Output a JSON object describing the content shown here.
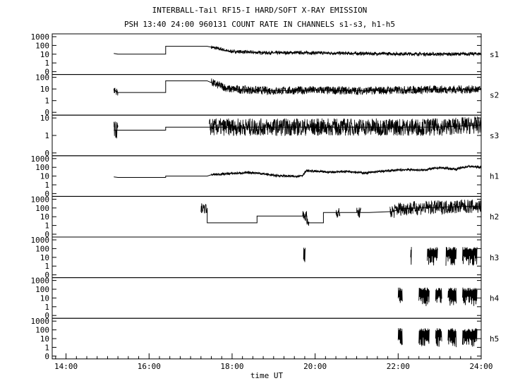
{
  "chart_data": {
    "type": "line",
    "title": "INTERBALL-Tail RF15-I HARD/SOFT X-RAY EMISSION",
    "subtitle": "PSH 13:40 24:00 960131  COUNT RATE IN CHANNELS s1-s3, h1-h5",
    "xlabel": "time UT",
    "x_ticks": [
      "14:00",
      "16:00",
      "18:00",
      "20:00",
      "22:00",
      "24:00"
    ],
    "xlim": [
      13.667,
      24.0
    ],
    "y_scale": "log",
    "grid": false,
    "panels": [
      {
        "name": "s1",
        "y_ticks": [
          "1000",
          "100",
          "10",
          "1",
          "0"
        ],
        "points": [
          [
            15.15,
            12
          ],
          [
            15.25,
            10
          ],
          [
            16.4,
            10
          ],
          [
            16.4,
            80
          ],
          [
            17.4,
            80
          ],
          [
            17.6,
            50
          ],
          [
            17.9,
            22
          ],
          [
            18.5,
            16
          ],
          [
            19.0,
            14
          ],
          [
            19.5,
            15
          ],
          [
            20.0,
            14
          ],
          [
            20.5,
            13
          ],
          [
            21.0,
            12
          ],
          [
            22.0,
            11
          ],
          [
            23.0,
            10
          ],
          [
            24.0,
            11
          ]
        ],
        "noise": [
          [
            17.5,
            24.0,
            0.2
          ]
        ]
      },
      {
        "name": "s2",
        "y_ticks": [
          "100",
          "10",
          "1",
          "0"
        ],
        "points": [
          [
            15.15,
            8
          ],
          [
            15.25,
            5
          ],
          [
            16.4,
            5
          ],
          [
            16.4,
            50
          ],
          [
            17.4,
            50
          ],
          [
            17.6,
            25
          ],
          [
            17.9,
            10
          ],
          [
            18.5,
            8
          ],
          [
            19.0,
            7
          ],
          [
            20.0,
            8
          ],
          [
            21.0,
            7
          ],
          [
            22.0,
            8
          ],
          [
            23.0,
            9
          ],
          [
            24.0,
            9
          ]
        ],
        "noise": [
          [
            15.15,
            15.25,
            0.3
          ],
          [
            17.5,
            24.0,
            0.35
          ]
        ]
      },
      {
        "name": "s3",
        "y_ticks": [
          "10",
          "1",
          "0"
        ],
        "points": [
          [
            15.15,
            2
          ],
          [
            15.25,
            2
          ],
          [
            16.4,
            2
          ],
          [
            16.4,
            3
          ],
          [
            17.4,
            3
          ],
          [
            17.5,
            3
          ],
          [
            18.0,
            3
          ],
          [
            19.0,
            3
          ],
          [
            20.0,
            3
          ],
          [
            21.0,
            3
          ],
          [
            22.0,
            3
          ],
          [
            23.0,
            3
          ],
          [
            24.0,
            4
          ]
        ],
        "noise": [
          [
            15.15,
            15.25,
            0.5
          ],
          [
            17.45,
            24.0,
            0.5
          ]
        ]
      },
      {
        "name": "h1",
        "y_ticks": [
          "1000",
          "100",
          "10",
          "1",
          "0"
        ],
        "points": [
          [
            15.15,
            8
          ],
          [
            15.25,
            7
          ],
          [
            16.4,
            7
          ],
          [
            16.4,
            10
          ],
          [
            17.4,
            10
          ],
          [
            17.5,
            14
          ],
          [
            18.0,
            20
          ],
          [
            18.5,
            25
          ],
          [
            19.0,
            12
          ],
          [
            19.5,
            9
          ],
          [
            19.7,
            12
          ],
          [
            19.8,
            40
          ],
          [
            20.3,
            28
          ],
          [
            20.8,
            35
          ],
          [
            21.2,
            22
          ],
          [
            21.7,
            38
          ],
          [
            22.2,
            55
          ],
          [
            22.6,
            48
          ],
          [
            23.0,
            90
          ],
          [
            23.4,
            60
          ],
          [
            23.7,
            130
          ],
          [
            24.0,
            100
          ]
        ],
        "noise": [
          [
            17.5,
            24.0,
            0.15
          ]
        ]
      },
      {
        "name": "h2",
        "y_ticks": [
          "1000",
          "100",
          "10",
          "1",
          "0"
        ],
        "points": [
          [
            17.4,
            100
          ],
          [
            17.4,
            2
          ],
          [
            18.6,
            2
          ],
          [
            18.6,
            12
          ],
          [
            19.8,
            12
          ],
          [
            19.8,
            2
          ],
          [
            20.2,
            2
          ],
          [
            20.2,
            30
          ],
          [
            21.3,
            30
          ],
          [
            21.9,
            40
          ],
          [
            22.0,
            80
          ],
          [
            23.0,
            120
          ],
          [
            23.5,
            150
          ],
          [
            24.0,
            150
          ]
        ],
        "noise": [
          [
            17.25,
            17.4,
            0.6
          ],
          [
            19.7,
            19.85,
            0.6
          ],
          [
            20.5,
            20.6,
            0.6
          ],
          [
            21.0,
            21.1,
            0.6
          ],
          [
            21.8,
            24.0,
            0.8
          ]
        ]
      },
      {
        "name": "h3",
        "y_ticks": [
          "1000",
          "100",
          "10",
          "1",
          "0"
        ],
        "points": [],
        "bursts": [
          [
            19.72,
            19.76
          ],
          [
            22.3,
            22.32
          ],
          [
            22.7,
            22.95
          ],
          [
            23.15,
            23.4
          ],
          [
            23.55,
            23.9
          ]
        ]
      },
      {
        "name": "h4",
        "y_ticks": [
          "1000",
          "100",
          "10",
          "1",
          "0"
        ],
        "points": [],
        "bursts": [
          [
            22.0,
            22.1
          ],
          [
            22.5,
            22.75
          ],
          [
            22.9,
            23.05
          ],
          [
            23.2,
            23.4
          ],
          [
            23.55,
            23.9
          ]
        ]
      },
      {
        "name": "h5",
        "y_ticks": [
          "1000",
          "100",
          "10",
          "1",
          "0"
        ],
        "points": [],
        "bursts": [
          [
            22.0,
            22.1
          ],
          [
            22.5,
            22.75
          ],
          [
            22.9,
            23.05
          ],
          [
            23.2,
            23.4
          ],
          [
            23.55,
            23.9
          ]
        ]
      }
    ]
  }
}
